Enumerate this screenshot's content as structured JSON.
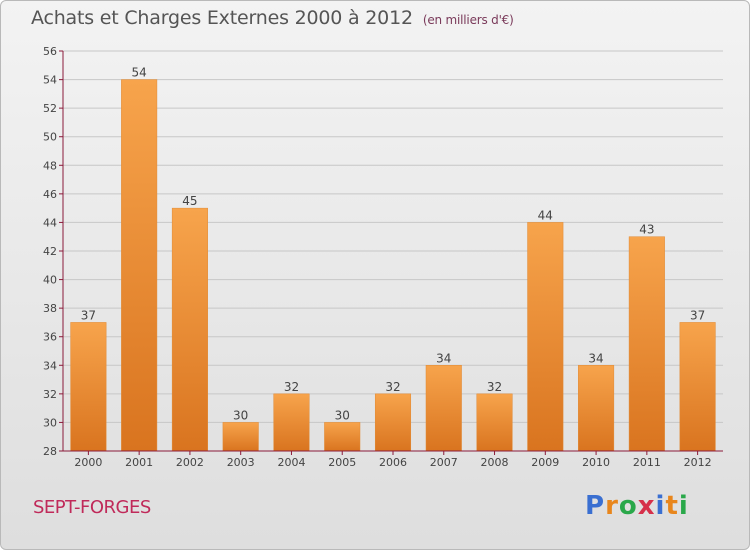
{
  "title": "Achats et Charges Externes 2000 à 2012",
  "subtitle": "(en milliers d'€)",
  "commune": "SEPT-FORGES",
  "logo": {
    "text": "Proxiti",
    "letter_colors": [
      "#3a6fd1",
      "#e8861c",
      "#2aa84a",
      "#d6304a",
      "#3a6fd1",
      "#e8861c",
      "#2aa84a"
    ]
  },
  "colors": {
    "bar_light": "#f7a44c",
    "bar_dark": "#d9741f",
    "grid": "#c7c7c7",
    "axis": "#8a1a3a"
  },
  "chart_data": {
    "type": "bar",
    "categories": [
      "2000",
      "2001",
      "2002",
      "2003",
      "2004",
      "2005",
      "2006",
      "2007",
      "2008",
      "2009",
      "2010",
      "2011",
      "2012"
    ],
    "values": [
      37,
      54,
      45,
      30,
      32,
      30,
      32,
      34,
      32,
      44,
      34,
      43,
      37
    ],
    "ylim": [
      28,
      56
    ],
    "yticks": [
      28,
      30,
      32,
      34,
      36,
      38,
      40,
      42,
      44,
      46,
      48,
      50,
      52,
      54,
      56
    ],
    "grid": true,
    "xlabel": "",
    "ylabel": ""
  }
}
